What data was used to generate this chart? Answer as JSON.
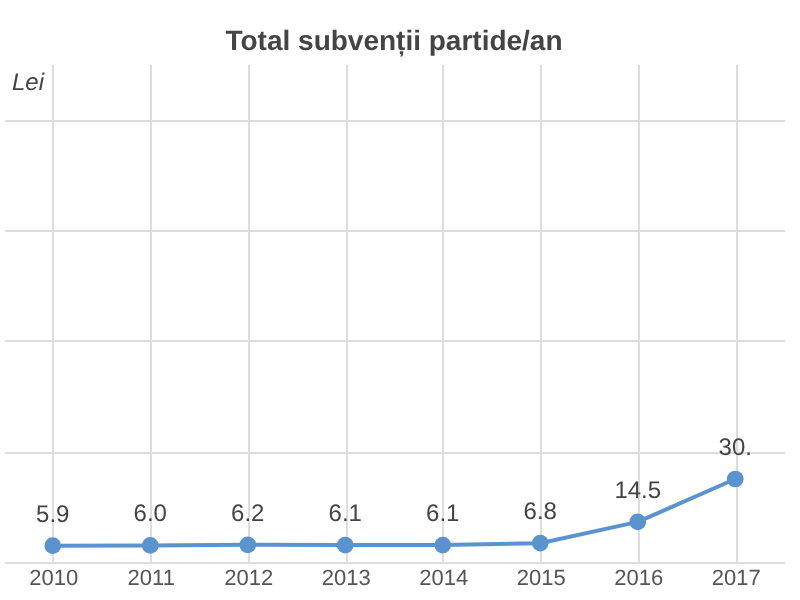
{
  "chart_data": {
    "type": "line",
    "title": "Total subvenții partide/an",
    "ylabel": "Lei",
    "categories": [
      "2010",
      "2011",
      "2012",
      "2013",
      "2014",
      "2015",
      "2016",
      "2017"
    ],
    "series": [
      {
        "color": "#5b93cf",
        "values": [
          5.9,
          6.0,
          6.2,
          6.1,
          6.1,
          6.8,
          14.5,
          30.0
        ],
        "value_labels": [
          "5.9",
          "6.0",
          "6.2",
          "6.1",
          "6.1",
          "6.8",
          "14.5",
          "30."
        ]
      }
    ],
    "ylim": [
      0,
      180
    ],
    "yticks": [
      {
        "value": 0,
        "label": null
      },
      {
        "value": 40,
        "label": null
      },
      {
        "value": 80,
        "label": null
      },
      {
        "value": 120,
        "label": null
      },
      {
        "value": 160,
        "label": null
      }
    ],
    "tick_labels": "x",
    "grid": true,
    "marker": "circle",
    "line_style": "solid"
  }
}
